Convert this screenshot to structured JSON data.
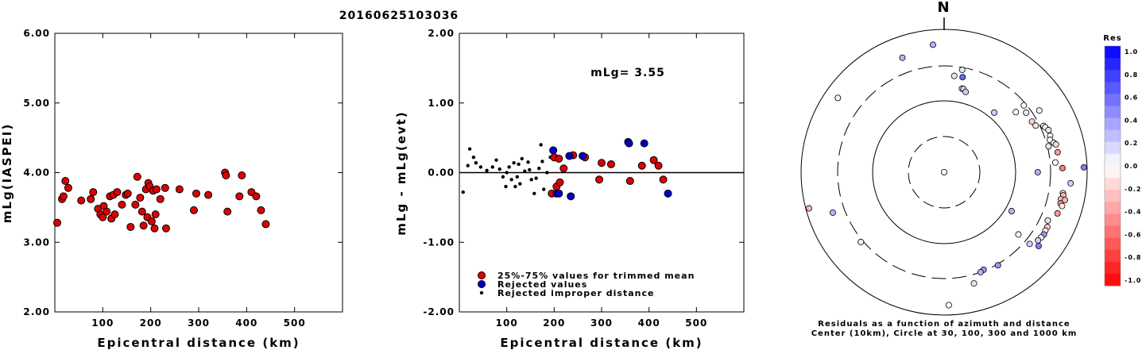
{
  "title": "20160625103036",
  "chart_data": [
    {
      "type": "scatter",
      "ylabel": "mLg(IASPEI)",
      "xlabel": "Epicentral distance (km)",
      "xlim": [
        0,
        600
      ],
      "ylim": [
        2.0,
        6.0
      ],
      "x_ticks": [
        "100",
        "200",
        "300",
        "400",
        "500"
      ],
      "y_ticks": [
        "2.00",
        "3.00",
        "4.00",
        "5.00",
        "6.00"
      ],
      "marker_color": "#dd0000",
      "points": [
        [
          5,
          3.28
        ],
        [
          15,
          3.62
        ],
        [
          18,
          3.66
        ],
        [
          22,
          3.88
        ],
        [
          28,
          3.78
        ],
        [
          55,
          3.6
        ],
        [
          75,
          3.62
        ],
        [
          80,
          3.72
        ],
        [
          90,
          3.48
        ],
        [
          95,
          3.4
        ],
        [
          100,
          3.36
        ],
        [
          102,
          3.52
        ],
        [
          108,
          3.44
        ],
        [
          115,
          3.66
        ],
        [
          118,
          3.34
        ],
        [
          122,
          3.68
        ],
        [
          125,
          3.4
        ],
        [
          130,
          3.72
        ],
        [
          140,
          3.54
        ],
        [
          148,
          3.68
        ],
        [
          152,
          3.7
        ],
        [
          158,
          3.22
        ],
        [
          168,
          3.54
        ],
        [
          172,
          3.94
        ],
        [
          178,
          3.64
        ],
        [
          182,
          3.44
        ],
        [
          185,
          3.24
        ],
        [
          190,
          3.76
        ],
        [
          193,
          3.36
        ],
        [
          195,
          3.85
        ],
        [
          198,
          3.8
        ],
        [
          202,
          3.3
        ],
        [
          205,
          3.74
        ],
        [
          208,
          3.2
        ],
        [
          210,
          3.4
        ],
        [
          212,
          3.76
        ],
        [
          220,
          3.62
        ],
        [
          230,
          3.78
        ],
        [
          232,
          3.2
        ],
        [
          260,
          3.76
        ],
        [
          290,
          3.46
        ],
        [
          295,
          3.7
        ],
        [
          320,
          3.68
        ],
        [
          355,
          4.0
        ],
        [
          357,
          3.96
        ],
        [
          360,
          3.44
        ],
        [
          385,
          3.66
        ],
        [
          390,
          3.96
        ],
        [
          410,
          3.72
        ],
        [
          420,
          3.66
        ],
        [
          430,
          3.46
        ],
        [
          440,
          3.26
        ]
      ]
    },
    {
      "type": "scatter",
      "ylabel": "mLg - mLg(evt)",
      "xlabel": "Epicentral distance (km)",
      "xlim": [
        0,
        600
      ],
      "ylim": [
        -2.0,
        2.0
      ],
      "x_ticks": [
        "100",
        "200",
        "300",
        "400",
        "500"
      ],
      "y_ticks": [
        "-2.00",
        "-1.00",
        "0.00",
        "1.00",
        "2.00"
      ],
      "annotation": "mLg= 3.55",
      "series": [
        {
          "name": "25%-75% values for trimmed mean",
          "color": "#dd0000",
          "points": [
            [
              195,
              -0.3
            ],
            [
              200,
              0.22
            ],
            [
              205,
              -0.2
            ],
            [
              210,
              0.2
            ],
            [
              212,
              -0.14
            ],
            [
              220,
              0.06
            ],
            [
              240,
              0.25
            ],
            [
              265,
              0.22
            ],
            [
              295,
              -0.1
            ],
            [
              300,
              0.14
            ],
            [
              320,
              0.12
            ],
            [
              360,
              -0.12
            ],
            [
              385,
              0.1
            ],
            [
              410,
              0.18
            ],
            [
              420,
              0.1
            ],
            [
              430,
              -0.1
            ]
          ]
        },
        {
          "name": "Rejected values",
          "color": "#0000cc",
          "points": [
            [
              198,
              0.32
            ],
            [
              205,
              -0.3
            ],
            [
              210,
              -0.3
            ],
            [
              232,
              0.24
            ],
            [
              235,
              -0.34
            ],
            [
              260,
              0.24
            ],
            [
              356,
              0.44
            ],
            [
              358,
              0.42
            ],
            [
              390,
              0.42
            ],
            [
              440,
              -0.3
            ]
          ]
        },
        {
          "name": "Rejected improper distance",
          "color": "#000000",
          "points": [
            [
              8,
              -0.28
            ],
            [
              18,
              0.1
            ],
            [
              22,
              0.34
            ],
            [
              30,
              0.22
            ],
            [
              35,
              0.14
            ],
            [
              45,
              0.08
            ],
            [
              58,
              0.03
            ],
            [
              70,
              0.08
            ],
            [
              78,
              0.18
            ],
            [
              85,
              0.05
            ],
            [
              92,
              -0.06
            ],
            [
              98,
              -0.2
            ],
            [
              100,
              0.0
            ],
            [
              105,
              0.08
            ],
            [
              110,
              -0.1
            ],
            [
              115,
              0.14
            ],
            [
              118,
              -0.2
            ],
            [
              122,
              -0.06
            ],
            [
              125,
              0.12
            ],
            [
              128,
              -0.16
            ],
            [
              132,
              0.2
            ],
            [
              138,
              0.02
            ],
            [
              145,
              0.15
            ],
            [
              148,
              0.04
            ],
            [
              152,
              -0.1
            ],
            [
              158,
              -0.3
            ],
            [
              162,
              -0.08
            ],
            [
              168,
              0.06
            ],
            [
              172,
              0.4
            ],
            [
              175,
              0.16
            ],
            [
              178,
              -0.24
            ],
            [
              185,
              0.0
            ],
            [
              192,
              0.22
            ]
          ]
        }
      ]
    },
    {
      "type": "polar_scatter",
      "north_label": "N",
      "caption_1": "Residuals as a function of azimuth and distance",
      "caption_2": "Center (10km), Circle at 30, 100, 300 and 1000 km",
      "colorbar_title": "Res",
      "colorbar_ticks": [
        "1.0",
        "0.8",
        "0.6",
        "0.4",
        "0.2",
        "0.0",
        "-0.2",
        "-0.4",
        "-0.6",
        "-0.8",
        "-1.0"
      ],
      "stations": [
        [
          0,
          200,
          0
        ],
        [
          6,
          2,
          0.1
        ],
        [
          10,
          2.5,
          0.1
        ],
        [
          11,
          2,
          0.6
        ],
        [
          12,
          1.4,
          -0.1
        ],
        [
          13,
          1.4,
          0.2
        ],
        [
          15,
          1.3,
          0.2
        ],
        [
          50,
          1.8,
          0
        ],
        [
          40,
          1.1,
          0.2
        ],
        [
          50,
          2.5,
          0
        ],
        [
          54,
          2.3,
          0.1
        ],
        [
          57,
          3.4,
          0.05
        ],
        [
          60,
          2.3,
          -0.2
        ],
        [
          63,
          2.4,
          -0.1
        ],
        [
          65,
          3,
          0.05
        ],
        [
          66,
          3.1,
          -0.05
        ],
        [
          68,
          3.3,
          0.1
        ],
        [
          71,
          3.25,
          -0.05
        ],
        [
          73,
          3.1,
          0
        ],
        [
          75,
          3.4,
          0.05
        ],
        [
          76,
          3.6,
          -0.15
        ],
        [
          76,
          2.8,
          0.1
        ],
        [
          80,
          3.6,
          -0.4
        ],
        [
          85,
          3.2,
          0
        ],
        [
          88,
          4,
          -0.5
        ],
        [
          88,
          8.8,
          0.5
        ],
        [
          95,
          5.3,
          0.2
        ],
        [
          100,
          4.3,
          -0.15
        ],
        [
          101,
          4.4,
          -0.3
        ],
        [
          103,
          4.2,
          -0.25
        ],
        [
          103,
          4.8,
          -0.3
        ],
        [
          105,
          4.3,
          -0.4
        ],
        [
          106,
          4.6,
          -0.1
        ],
        [
          110,
          4.3,
          -0.4
        ],
        [
          115,
          3.5,
          0.1
        ],
        [
          118,
          3.8,
          -0.2
        ],
        [
          120,
          3.8,
          -0.1
        ],
        [
          122,
          3.9,
          0.4
        ],
        [
          124,
          3.8,
          0.05
        ],
        [
          126,
          3.7,
          0.2
        ],
        [
          128,
          4.2,
          0.5
        ],
        [
          130,
          3.2,
          0.2
        ],
        [
          130,
          2,
          0.05
        ],
        [
          150,
          2.8,
          0.4
        ],
        [
          158,
          2.6,
          0.4
        ],
        [
          160,
          2.7,
          0.3
        ],
        [
          165,
          3.6,
          0.1
        ],
        [
          178,
          6.5,
          0
        ],
        [
          120,
          1.1,
          0.3
        ],
        [
          90,
          1.8,
          0.3
        ],
        [
          230,
          2.9,
          0.05
        ],
        [
          250,
          4,
          0.3
        ],
        [
          255,
          8.2,
          -0.3
        ],
        [
          305,
          5.8,
          0.05
        ],
        [
          340,
          4.5,
          0.3
        ],
        [
          355,
          5.5,
          0.3
        ]
      ]
    }
  ]
}
